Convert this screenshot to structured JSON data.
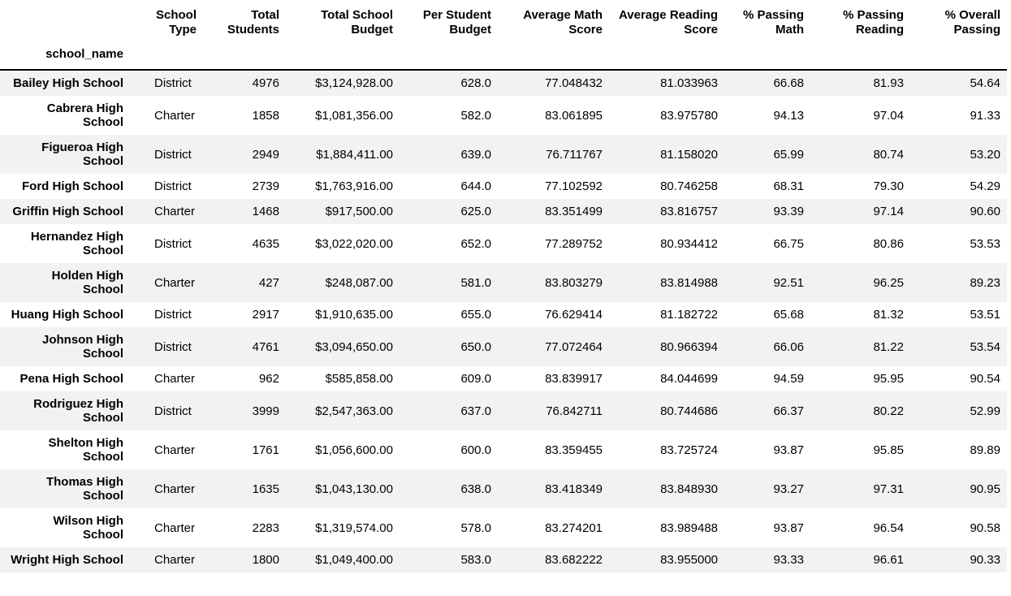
{
  "chart_data": {
    "type": "table",
    "index_name": "school_name",
    "columns": [
      "School\nType",
      "Total\nStudents",
      "Total School\nBudget",
      "Per Student\nBudget",
      "Average Math\nScore",
      "Average Reading\nScore",
      "% Passing\nMath",
      "% Passing\nReading",
      "% Overall\nPassing"
    ],
    "rows": [
      {
        "name": "Bailey High School",
        "values": [
          "District",
          "4976",
          "$3,124,928.00",
          "628.0",
          "77.048432",
          "81.033963",
          "66.68",
          "81.93",
          "54.64"
        ]
      },
      {
        "name": "Cabrera High\nSchool",
        "values": [
          "Charter",
          "1858",
          "$1,081,356.00",
          "582.0",
          "83.061895",
          "83.975780",
          "94.13",
          "97.04",
          "91.33"
        ]
      },
      {
        "name": "Figueroa High\nSchool",
        "values": [
          "District",
          "2949",
          "$1,884,411.00",
          "639.0",
          "76.711767",
          "81.158020",
          "65.99",
          "80.74",
          "53.20"
        ]
      },
      {
        "name": "Ford High School",
        "values": [
          "District",
          "2739",
          "$1,763,916.00",
          "644.0",
          "77.102592",
          "80.746258",
          "68.31",
          "79.30",
          "54.29"
        ]
      },
      {
        "name": "Griffin High School",
        "values": [
          "Charter",
          "1468",
          "$917,500.00",
          "625.0",
          "83.351499",
          "83.816757",
          "93.39",
          "97.14",
          "90.60"
        ]
      },
      {
        "name": "Hernandez High\nSchool",
        "values": [
          "District",
          "4635",
          "$3,022,020.00",
          "652.0",
          "77.289752",
          "80.934412",
          "66.75",
          "80.86",
          "53.53"
        ]
      },
      {
        "name": "Holden High\nSchool",
        "values": [
          "Charter",
          "427",
          "$248,087.00",
          "581.0",
          "83.803279",
          "83.814988",
          "92.51",
          "96.25",
          "89.23"
        ]
      },
      {
        "name": "Huang High School",
        "values": [
          "District",
          "2917",
          "$1,910,635.00",
          "655.0",
          "76.629414",
          "81.182722",
          "65.68",
          "81.32",
          "53.51"
        ]
      },
      {
        "name": "Johnson High\nSchool",
        "values": [
          "District",
          "4761",
          "$3,094,650.00",
          "650.0",
          "77.072464",
          "80.966394",
          "66.06",
          "81.22",
          "53.54"
        ]
      },
      {
        "name": "Pena High School",
        "values": [
          "Charter",
          "962",
          "$585,858.00",
          "609.0",
          "83.839917",
          "84.044699",
          "94.59",
          "95.95",
          "90.54"
        ]
      },
      {
        "name": "Rodriguez High\nSchool",
        "values": [
          "District",
          "3999",
          "$2,547,363.00",
          "637.0",
          "76.842711",
          "80.744686",
          "66.37",
          "80.22",
          "52.99"
        ]
      },
      {
        "name": "Shelton High\nSchool",
        "values": [
          "Charter",
          "1761",
          "$1,056,600.00",
          "600.0",
          "83.359455",
          "83.725724",
          "93.87",
          "95.85",
          "89.89"
        ]
      },
      {
        "name": "Thomas High\nSchool",
        "values": [
          "Charter",
          "1635",
          "$1,043,130.00",
          "638.0",
          "83.418349",
          "83.848930",
          "93.27",
          "97.31",
          "90.95"
        ]
      },
      {
        "name": "Wilson High\nSchool",
        "values": [
          "Charter",
          "2283",
          "$1,319,574.00",
          "578.0",
          "83.274201",
          "83.989488",
          "93.87",
          "96.54",
          "90.58"
        ]
      },
      {
        "name": "Wright High School",
        "values": [
          "Charter",
          "1800",
          "$1,049,400.00",
          "583.0",
          "83.682222",
          "83.955000",
          "93.33",
          "96.61",
          "90.33"
        ]
      }
    ],
    "layout": {
      "stripe_rows": "odd",
      "grid": false,
      "numeric_alignment": "right",
      "index_alignment": "right"
    },
    "colors": {
      "stripe": "#f2f2f2",
      "text": "#000000",
      "header_border": "#000000",
      "background": "#ffffff"
    }
  }
}
